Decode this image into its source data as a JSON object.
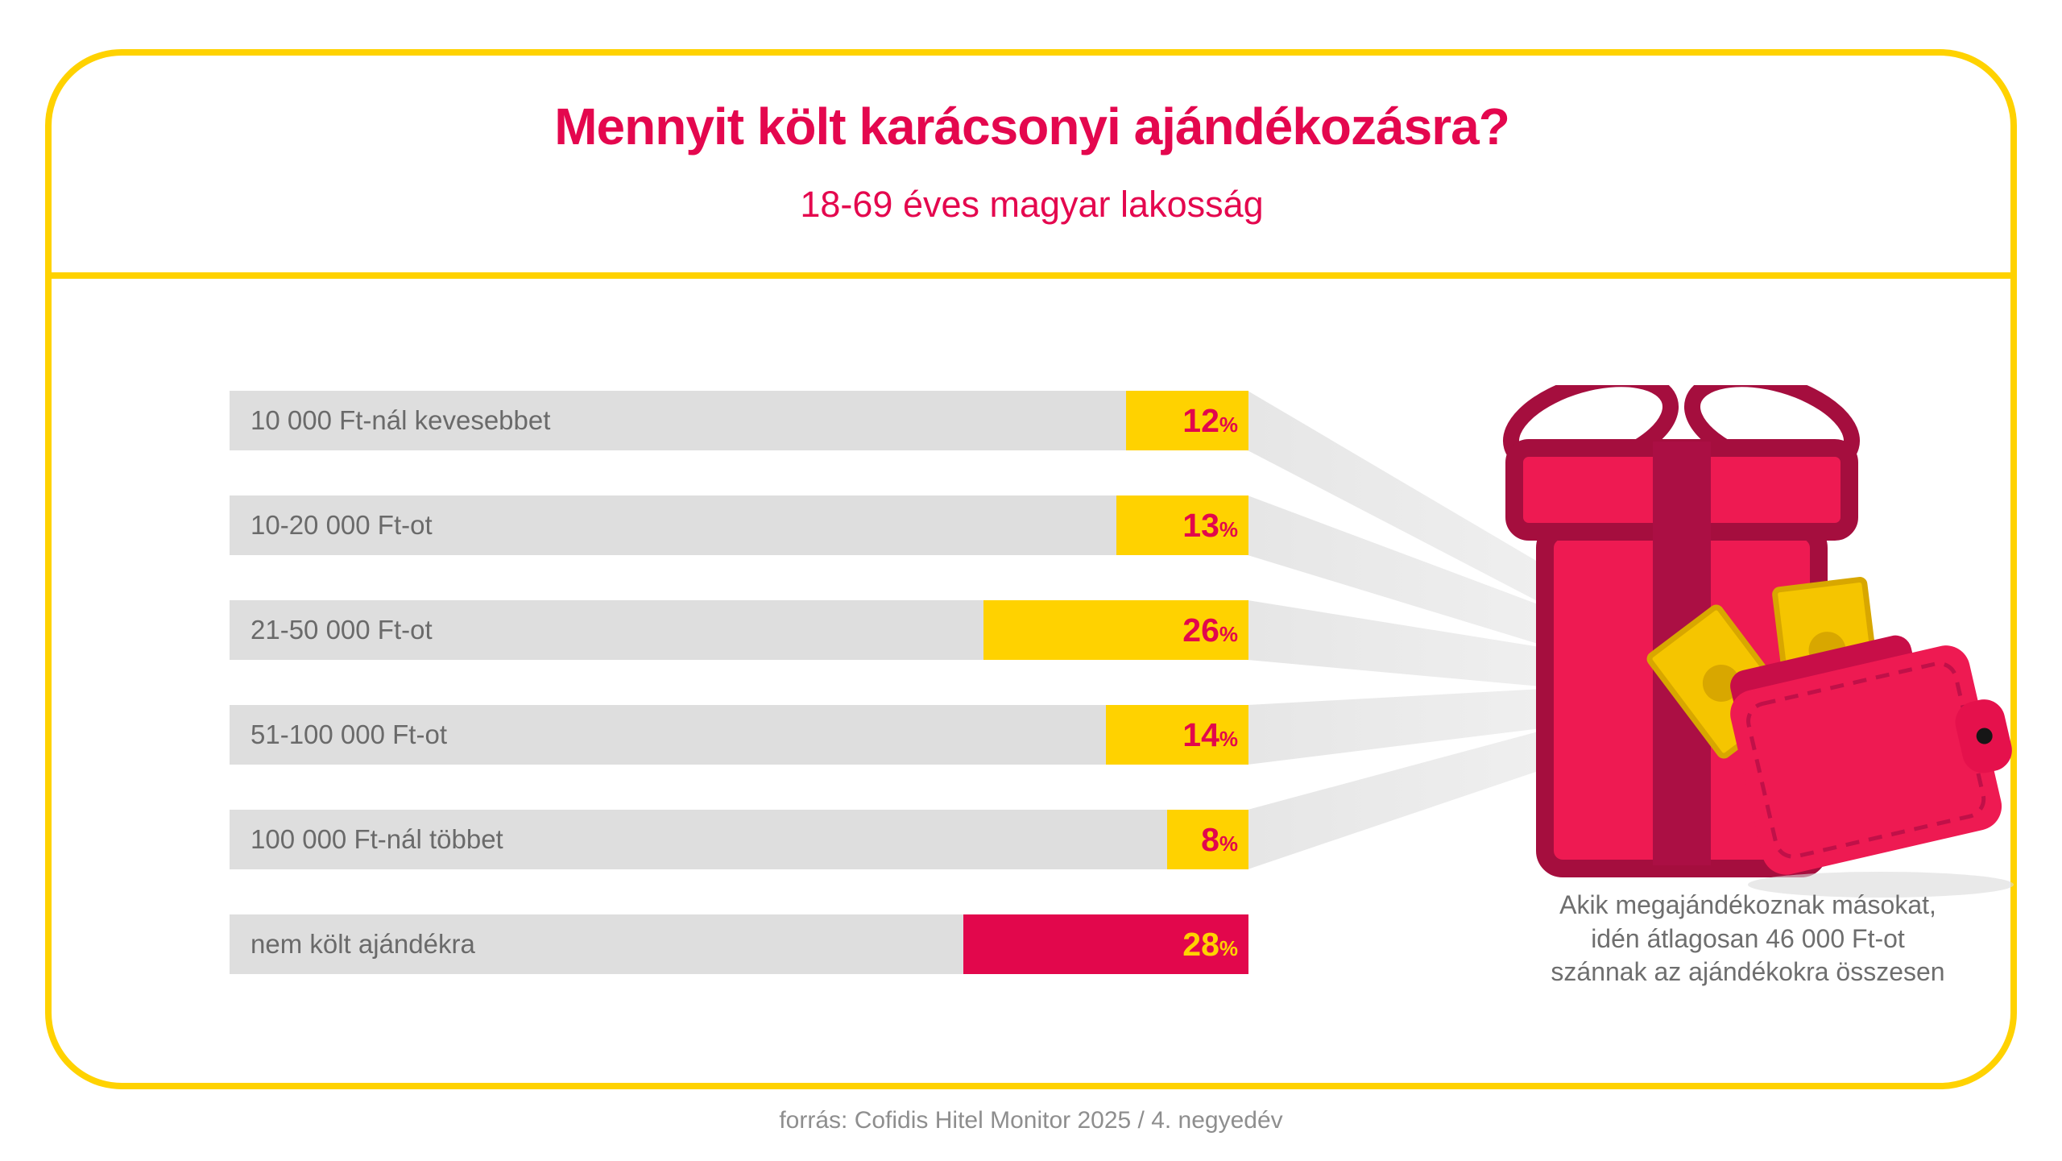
{
  "header": {
    "title": "Mennyit költ karácsonyi ajándékozásra?",
    "subtitle": "18-69 éves magyar lakosság"
  },
  "chart_data": {
    "type": "bar",
    "orientation": "horizontal",
    "title": "Mennyit költ karácsonyi ajándékozásra?",
    "subtitle": "18-69 éves magyar lakosság",
    "categories": [
      "10 000 Ft-nál kevesebbet",
      "10-20 000 Ft-ot",
      "21-50 000 Ft-ot",
      "51-100 000 Ft-ot",
      "100 000 Ft-nál többet",
      "nem költ ajándékra"
    ],
    "values": [
      12,
      13,
      26,
      14,
      8,
      28
    ],
    "unit": "%",
    "value_axis_range": [
      0,
      100
    ],
    "gridlines": false,
    "legend": "none",
    "bar_track_color": "#DEDEDE",
    "segment_colors": [
      "#FFD200",
      "#FFD200",
      "#FFD200",
      "#FFD200",
      "#FFD200",
      "#E2074C"
    ],
    "value_label_colors": [
      "#E2074C",
      "#E2074C",
      "#E2074C",
      "#E2074C",
      "#E2074C",
      "#FFD200"
    ]
  },
  "callout": {
    "line1": "Akik megajándékoznak másokat,",
    "line2": "idén átlagosan 46 000 Ft-ot",
    "line3": "szánnak az ajándékokra összesen"
  },
  "illustration": {
    "name": "gift-box-and-wallet-with-banknotes"
  },
  "footer": {
    "source": "forrás: Cofidis Hitel Monitor 2025 / 4. negyedév"
  },
  "colors": {
    "accent_crimson": "#E4074E",
    "accent_yellow": "#FFD200",
    "bar_gray": "#DEDEDE",
    "beam_gray": "#ECECEC",
    "label_gray": "#6A6A6A",
    "callout_gray": "#6E6E6E",
    "footer_gray": "#8E8E8E",
    "gift_fill": "#EE1A52",
    "gift_outline": "#A50E3E",
    "banknote_yellow": "#F5C500"
  }
}
